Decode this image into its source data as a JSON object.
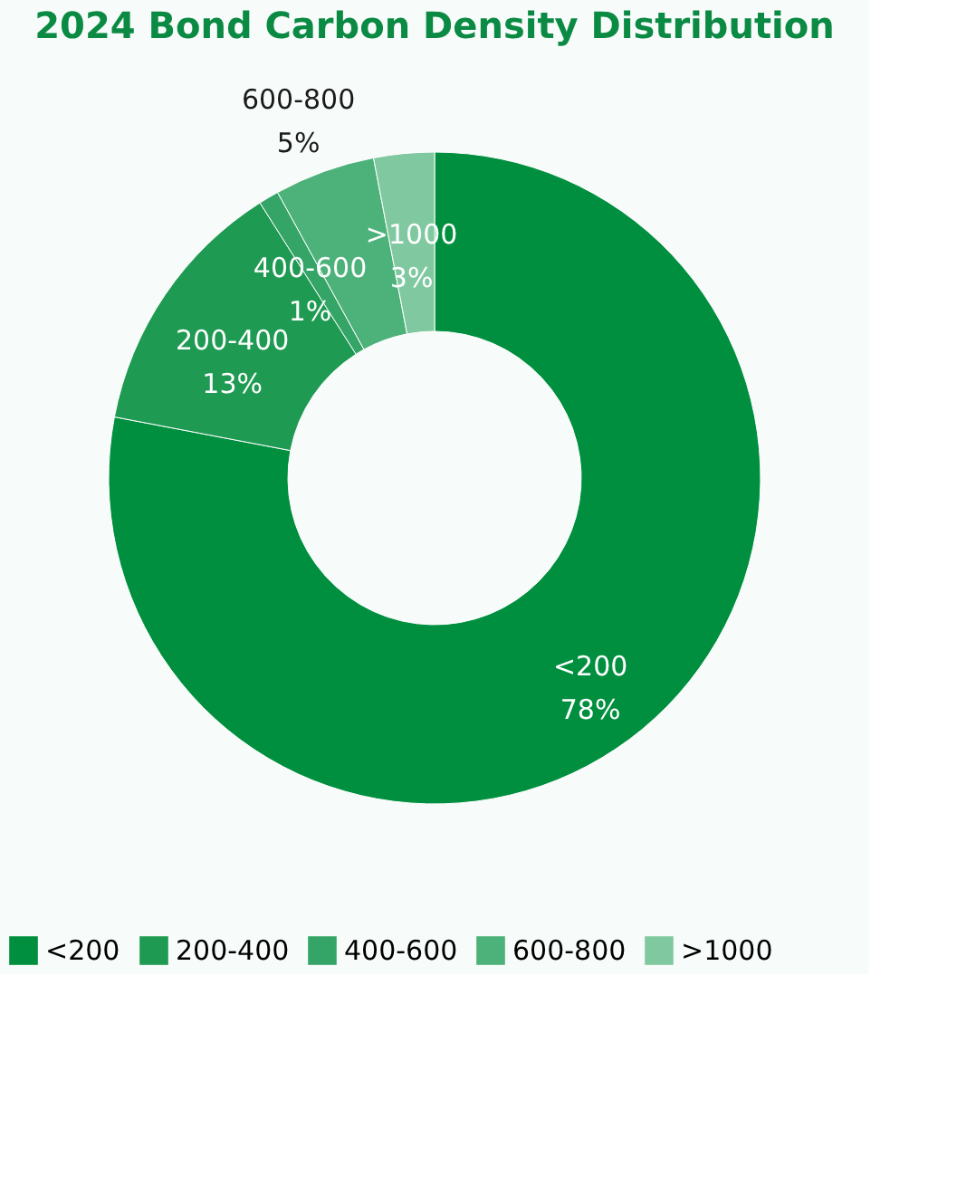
{
  "chart_data": {
    "type": "donut",
    "title": "2024 Bond Carbon Density Distribution",
    "categories": [
      "<200",
      "200-400",
      "400-600",
      "600-800",
      ">1000"
    ],
    "values": [
      78,
      13,
      1,
      5,
      3
    ],
    "value_labels": [
      "78%",
      "13%",
      "1%",
      "5%",
      "3%"
    ],
    "colors": [
      "#008f3f",
      "#1e9a52",
      "#34a567",
      "#4db27a",
      "#80c9a0"
    ],
    "legend": "bottom"
  }
}
